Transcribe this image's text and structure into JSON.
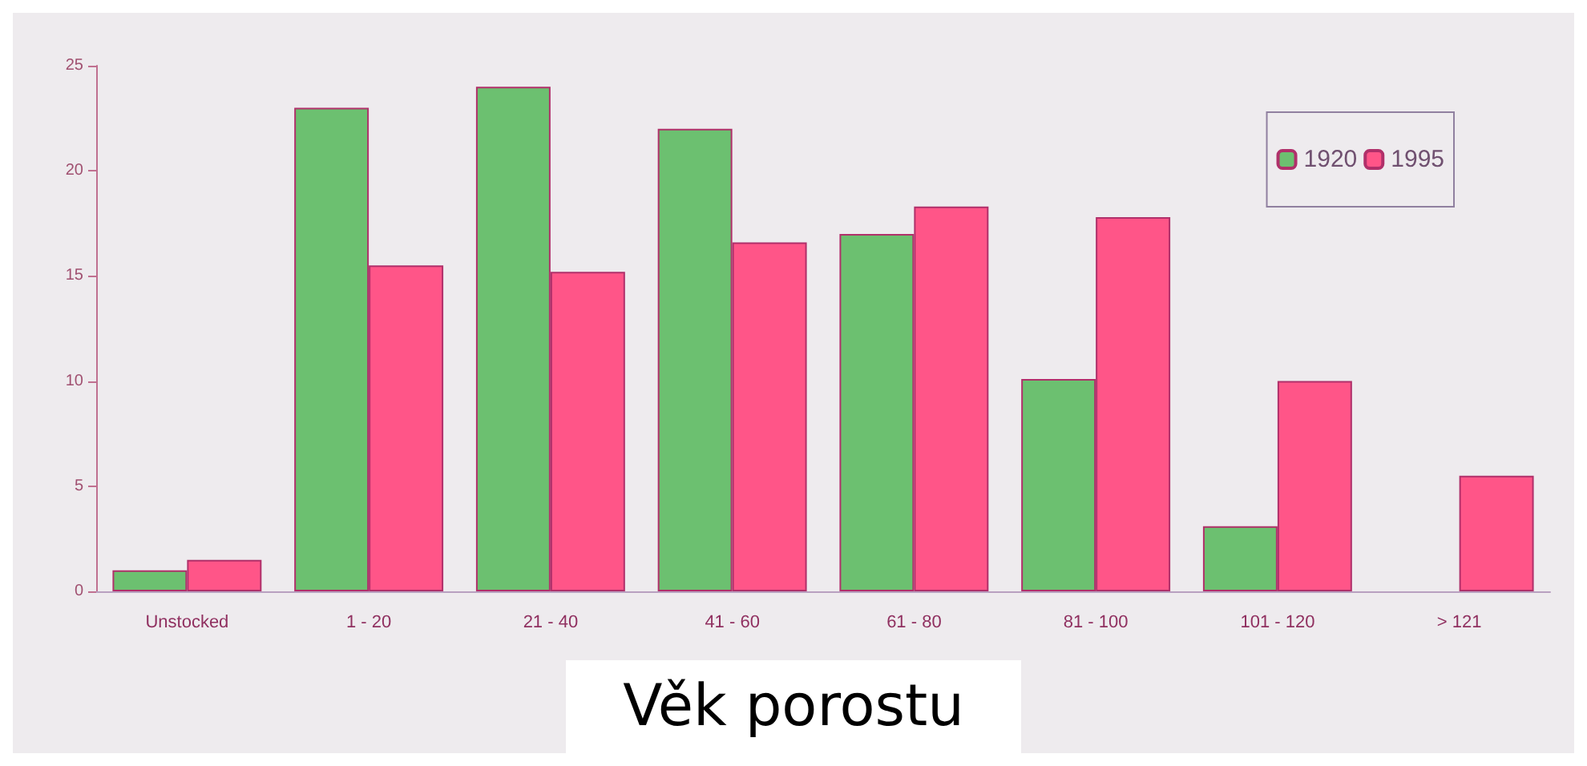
{
  "chart_data": {
    "type": "bar",
    "xlabel": "Věk porostu",
    "categories": [
      "Unstocked",
      "1 - 20",
      "21 - 40",
      "41 - 60",
      "61 - 80",
      "81 - 100",
      "101 - 120",
      "> 121"
    ],
    "series": [
      {
        "name": "1920",
        "color": "#6cc070",
        "values": [
          1,
          23,
          24,
          22,
          17,
          10.1,
          3.1,
          null
        ]
      },
      {
        "name": "1995",
        "color": "#ff5588",
        "values": [
          1.5,
          15.5,
          15.2,
          16.6,
          18.3,
          17.8,
          10,
          5.5
        ]
      }
    ],
    "ylim": [
      0,
      25
    ],
    "yticks": [
      0,
      5,
      10,
      15,
      20,
      25
    ],
    "grid": false,
    "legend": "top right"
  }
}
